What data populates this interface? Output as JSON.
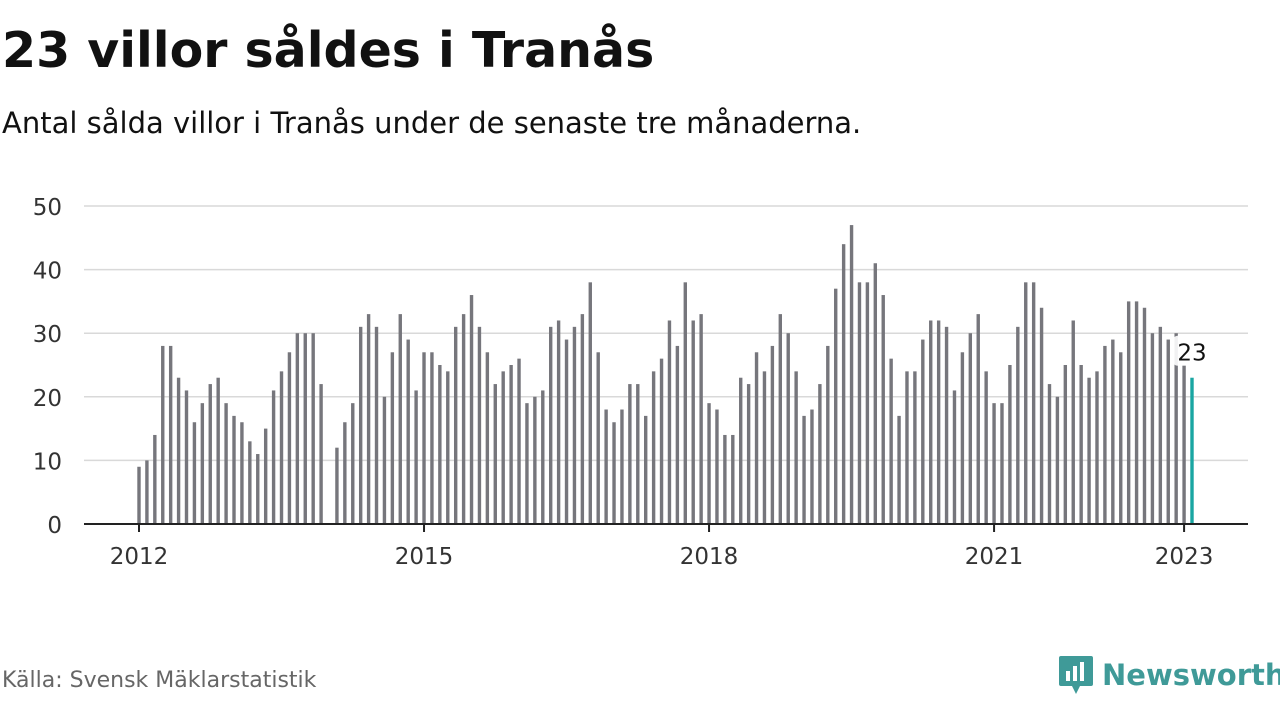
{
  "title": "23 villor såldes i Tranås",
  "subtitle": "Antal sålda villor i Tranås under de senaste tre månaderna.",
  "source": "Källa: Svensk Mäklarstatistik",
  "brand": {
    "name": "Newsworthy",
    "icon": "newsworthy-logo-icon",
    "color": "#3f9a98"
  },
  "colors": {
    "bar": "#76767c",
    "highlight": "#1aa6a2",
    "grid": "#d9d9d9",
    "axis": "#222222"
  },
  "chart_data": {
    "type": "bar",
    "title": "23 villor såldes i Tranås",
    "subtitle": "Antal sålda villor i Tranås under de senaste tre månaderna.",
    "xlabel": "",
    "ylabel": "",
    "ylim": [
      0,
      50
    ],
    "yticks": [
      0,
      10,
      20,
      30,
      40,
      50
    ],
    "xticks": [
      2012,
      2015,
      2018,
      2021,
      2023
    ],
    "grid": "horizontal",
    "x_start": "2012-01",
    "x_interval": "month",
    "values": [
      9,
      10,
      14,
      28,
      28,
      23,
      21,
      16,
      19,
      22,
      23,
      19,
      17,
      16,
      13,
      11,
      15,
      21,
      24,
      27,
      30,
      30,
      30,
      22,
      null,
      12,
      16,
      19,
      31,
      33,
      31,
      20,
      27,
      33,
      29,
      21,
      27,
      27,
      25,
      24,
      31,
      33,
      36,
      31,
      27,
      22,
      24,
      25,
      26,
      19,
      20,
      21,
      31,
      32,
      29,
      31,
      33,
      38,
      27,
      18,
      16,
      18,
      22,
      22,
      17,
      24,
      26,
      32,
      28,
      38,
      32,
      33,
      19,
      18,
      14,
      14,
      23,
      22,
      27,
      24,
      28,
      33,
      30,
      24,
      17,
      18,
      22,
      28,
      37,
      44,
      47,
      38,
      38,
      41,
      36,
      26,
      17,
      24,
      24,
      29,
      32,
      32,
      31,
      21,
      27,
      30,
      33,
      24,
      19,
      19,
      25,
      31,
      38,
      38,
      34,
      22,
      20,
      25,
      32,
      25,
      23,
      24,
      28,
      29,
      27,
      35,
      35,
      34,
      30,
      31,
      29,
      30,
      25,
      23
    ],
    "highlight_label": "23"
  }
}
